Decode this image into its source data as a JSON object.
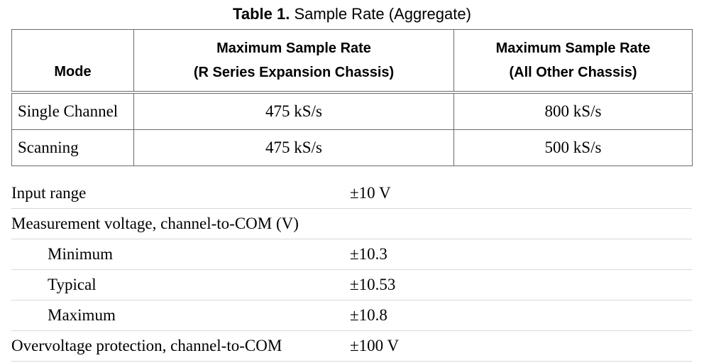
{
  "caption": {
    "label": "Table 1.",
    "title": "Sample Rate (Aggregate)"
  },
  "table": {
    "headers": {
      "mode": "Mode",
      "col2_line1": "Maximum Sample Rate",
      "col2_line2": "(R Series Expansion Chassis)",
      "col3_line1": "Maximum Sample Rate",
      "col3_line2": "(All Other Chassis)"
    },
    "rows": [
      {
        "mode": "Single Channel",
        "r_series": "475 kS/s",
        "other": "800 kS/s"
      },
      {
        "mode": "Scanning",
        "r_series": "475 kS/s",
        "other": "500 kS/s"
      }
    ]
  },
  "specs": [
    {
      "label": "Input range",
      "value": "±10 V"
    },
    {
      "label": "Measurement voltage, channel-to-COM (V)",
      "value": ""
    },
    {
      "label": "Minimum",
      "value": "±10.3"
    },
    {
      "label": "Typical",
      "value": "±10.53"
    },
    {
      "label": "Maximum",
      "value": "±10.8"
    },
    {
      "label": "Overvoltage protection, channel-to-COM",
      "value": "±100 V"
    }
  ]
}
